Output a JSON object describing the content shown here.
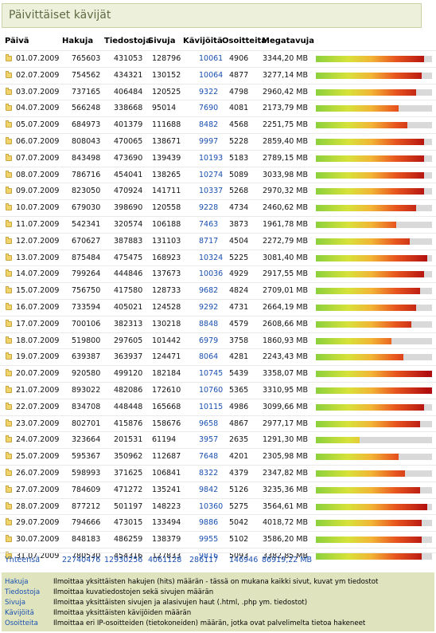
{
  "title": "Päivittäiset kävijät",
  "headers": {
    "day": "Päivä",
    "hits": "Hakuja",
    "files": "Tiedostoja",
    "pages": "Sivuja",
    "visits": "Kävijöitä",
    "sites": "Osoitteita",
    "kbytes": "Megatavuja"
  },
  "rows": [
    {
      "day": "01.07.2009",
      "hits": "765603",
      "files": "431053",
      "pages": "128796",
      "visits": "10061",
      "sites": "4906",
      "mb": "3344,20 MB",
      "pct": 93
    },
    {
      "day": "02.07.2009",
      "hits": "754562",
      "files": "434321",
      "pages": "130152",
      "visits": "10064",
      "sites": "4877",
      "mb": "3277,14 MB",
      "pct": 91
    },
    {
      "day": "03.07.2009",
      "hits": "737165",
      "files": "406484",
      "pages": "120525",
      "visits": "9322",
      "sites": "4798",
      "mb": "2960,42 MB",
      "pct": 86
    },
    {
      "day": "04.07.2009",
      "hits": "566248",
      "files": "338668",
      "pages": "95014",
      "visits": "7690",
      "sites": "4081",
      "mb": "2173,79 MB",
      "pct": 71
    },
    {
      "day": "05.07.2009",
      "hits": "684973",
      "files": "401379",
      "pages": "111688",
      "visits": "8482",
      "sites": "4568",
      "mb": "2251,75 MB",
      "pct": 79
    },
    {
      "day": "06.07.2009",
      "hits": "808043",
      "files": "470065",
      "pages": "138671",
      "visits": "9997",
      "sites": "5228",
      "mb": "2859,40 MB",
      "pct": 93
    },
    {
      "day": "07.07.2009",
      "hits": "843498",
      "files": "473690",
      "pages": "139439",
      "visits": "10193",
      "sites": "5183",
      "mb": "2789,15 MB",
      "pct": 93
    },
    {
      "day": "08.07.2009",
      "hits": "786716",
      "files": "454041",
      "pages": "138265",
      "visits": "10274",
      "sites": "5089",
      "mb": "3033,98 MB",
      "pct": 93
    },
    {
      "day": "09.07.2009",
      "hits": "823050",
      "files": "470924",
      "pages": "141711",
      "visits": "10337",
      "sites": "5268",
      "mb": "2970,32 MB",
      "pct": 93
    },
    {
      "day": "10.07.2009",
      "hits": "679030",
      "files": "398690",
      "pages": "120558",
      "visits": "9228",
      "sites": "4734",
      "mb": "2460,62 MB",
      "pct": 86
    },
    {
      "day": "11.07.2009",
      "hits": "542341",
      "files": "320574",
      "pages": "106188",
      "visits": "7463",
      "sites": "3873",
      "mb": "1961,78 MB",
      "pct": 69
    },
    {
      "day": "12.07.2009",
      "hits": "670627",
      "files": "387883",
      "pages": "131103",
      "visits": "8717",
      "sites": "4504",
      "mb": "2272,79 MB",
      "pct": 81
    },
    {
      "day": "13.07.2009",
      "hits": "875484",
      "files": "475475",
      "pages": "168923",
      "visits": "10324",
      "sites": "5225",
      "mb": "3081,40 MB",
      "pct": 96
    },
    {
      "day": "14.07.2009",
      "hits": "799264",
      "files": "444846",
      "pages": "137673",
      "visits": "10036",
      "sites": "4929",
      "mb": "2917,55 MB",
      "pct": 93
    },
    {
      "day": "15.07.2009",
      "hits": "756750",
      "files": "417580",
      "pages": "128733",
      "visits": "9682",
      "sites": "4824",
      "mb": "2709,01 MB",
      "pct": 90
    },
    {
      "day": "16.07.2009",
      "hits": "733594",
      "files": "405021",
      "pages": "124528",
      "visits": "9292",
      "sites": "4731",
      "mb": "2664,19 MB",
      "pct": 86
    },
    {
      "day": "17.07.2009",
      "hits": "700106",
      "files": "382313",
      "pages": "130218",
      "visits": "8848",
      "sites": "4579",
      "mb": "2608,66 MB",
      "pct": 82
    },
    {
      "day": "18.07.2009",
      "hits": "519800",
      "files": "297605",
      "pages": "101442",
      "visits": "6979",
      "sites": "3758",
      "mb": "1860,93 MB",
      "pct": 65
    },
    {
      "day": "19.07.2009",
      "hits": "639387",
      "files": "363937",
      "pages": "124471",
      "visits": "8064",
      "sites": "4281",
      "mb": "2243,43 MB",
      "pct": 75
    },
    {
      "day": "20.07.2009",
      "hits": "920580",
      "files": "499120",
      "pages": "182184",
      "visits": "10745",
      "sites": "5439",
      "mb": "3358,07 MB",
      "pct": 100
    },
    {
      "day": "21.07.2009",
      "hits": "893022",
      "files": "482086",
      "pages": "172610",
      "visits": "10760",
      "sites": "5365",
      "mb": "3310,95 MB",
      "pct": 100
    },
    {
      "day": "22.07.2009",
      "hits": "834708",
      "files": "448448",
      "pages": "165668",
      "visits": "10115",
      "sites": "4986",
      "mb": "3099,66 MB",
      "pct": 93
    },
    {
      "day": "23.07.2009",
      "hits": "802701",
      "files": "415876",
      "pages": "158676",
      "visits": "9658",
      "sites": "4867",
      "mb": "2977,17 MB",
      "pct": 90
    },
    {
      "day": "24.07.2009",
      "hits": "323664",
      "files": "201531",
      "pages": "61194",
      "visits": "3957",
      "sites": "2635",
      "mb": "1291,30 MB",
      "pct": 38
    },
    {
      "day": "25.07.2009",
      "hits": "595367",
      "files": "350962",
      "pages": "112687",
      "visits": "7648",
      "sites": "4201",
      "mb": "2305,98 MB",
      "pct": 71
    },
    {
      "day": "26.07.2009",
      "hits": "598993",
      "files": "371625",
      "pages": "106841",
      "visits": "8322",
      "sites": "4379",
      "mb": "2347,82 MB",
      "pct": 77
    },
    {
      "day": "27.07.2009",
      "hits": "784609",
      "files": "471272",
      "pages": "135241",
      "visits": "9842",
      "sites": "5126",
      "mb": "3235,36 MB",
      "pct": 90
    },
    {
      "day": "28.07.2009",
      "hits": "877212",
      "files": "501197",
      "pages": "148223",
      "visits": "10360",
      "sites": "5275",
      "mb": "3564,61 MB",
      "pct": 96
    },
    {
      "day": "29.07.2009",
      "hits": "794666",
      "files": "473015",
      "pages": "133494",
      "visits": "9886",
      "sites": "5042",
      "mb": "4018,72 MB",
      "pct": 91
    },
    {
      "day": "30.07.2009",
      "hits": "848183",
      "files": "486259",
      "pages": "138379",
      "visits": "9955",
      "sites": "5102",
      "mb": "3586,20 MB",
      "pct": 91
    },
    {
      "day": "31.07.2009",
      "hits": "780530",
      "files": "454316",
      "pages": "127833",
      "visits": "9816",
      "sites": "5093",
      "mb": "3382,85 MB",
      "pct": 91
    }
  ],
  "totals": {
    "label": "Yhteensä",
    "hits": "22740476",
    "files": "12930256",
    "pages": "4061128",
    "visits": "286117",
    "sites": "146946",
    "mb": "86919,22 MB"
  },
  "legend": [
    {
      "term": "Hakuja",
      "desc": "Ilmoittaa yksittäisten hakujen (hits) määrän - tässä on mukana kaikki sivut, kuvat ym tiedostot"
    },
    {
      "term": "Tiedostoja",
      "desc": "Ilmoittaa kuvatiedostojen sekä sivujen määrän"
    },
    {
      "term": "Sivuja",
      "desc": "Ilmoittaa yksittäisten sivujen ja alasivujen haut (.html, .php ym. tiedostot)"
    },
    {
      "term": "Kävijöitä",
      "desc": "Ilmoittaa yksittäisten kävijöiden määrän"
    },
    {
      "term": "Osoitteita",
      "desc": "Ilmoittaa eri IP-osoitteiden (tietokoneiden) määrän, jotka ovat palvelimelta tietoa hakeneet"
    }
  ]
}
